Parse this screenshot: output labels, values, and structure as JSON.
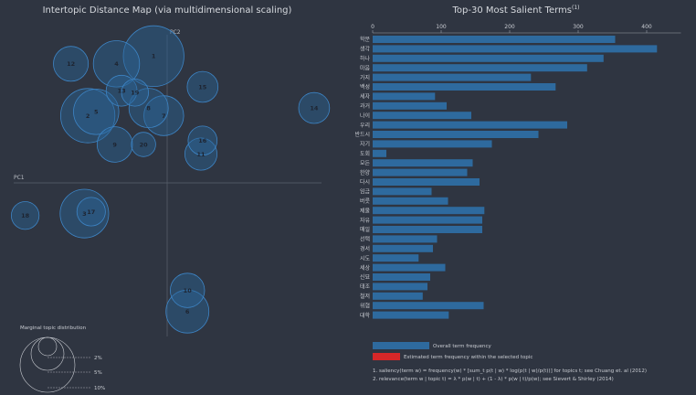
{
  "left_panel": {
    "title": "Intertopic Distance Map (via multidimensional scaling)",
    "pc1_label": "PC1",
    "pc2_label": "PC2",
    "marginal_title": "Marginal topic distribution",
    "marginal_levels": [
      "2%",
      "5%",
      "10%"
    ]
  },
  "right_panel": {
    "title": "Top-30 Most Salient Terms",
    "title_sup": "(1)",
    "legend_overall": "Overall term frequency",
    "legend_selected": "Estimated term frequency within the selected topic",
    "footnote1": "1. saliency(term w) = frequency(w) * [sum_t p(t | w) * log(p(t | w)/p(t))] for topics t; see Chuang et. al (2012)",
    "footnote2": "2. relevance(term w | topic t) = λ * p(w | t) + (1 - λ) * p(w | t)/p(w); see Sievert & Shirley (2014)"
  },
  "colors": {
    "background": "#2f3541",
    "bubble_fill": "#2a6496",
    "bubble_stroke": "#3d85c6",
    "bar": "#2e6a9e",
    "selected_bar": "#d62728"
  },
  "chart_data": [
    {
      "type": "scatter",
      "title": "Intertopic Distance Map (via multidimensional scaling)",
      "xlabel": "PC1",
      "ylabel": "PC2",
      "xlim": [
        -1,
        1
      ],
      "ylim": [
        -1,
        1
      ],
      "points": [
        {
          "topic": "1",
          "x": -0.08,
          "y": 0.66,
          "size": 10.0
        },
        {
          "topic": "2",
          "x": -0.47,
          "y": 0.35,
          "size": 8.0
        },
        {
          "topic": "3",
          "x": -0.49,
          "y": -0.16,
          "size": 6.4
        },
        {
          "topic": "4",
          "x": -0.3,
          "y": 0.62,
          "size": 5.8
        },
        {
          "topic": "5",
          "x": -0.42,
          "y": 0.37,
          "size": 5.6
        },
        {
          "topic": "6",
          "x": 0.12,
          "y": -0.67,
          "size": 5.0
        },
        {
          "topic": "7",
          "x": -0.02,
          "y": 0.35,
          "size": 4.3
        },
        {
          "topic": "8",
          "x": -0.11,
          "y": 0.39,
          "size": 4.2
        },
        {
          "topic": "9",
          "x": -0.31,
          "y": 0.2,
          "size": 3.4
        },
        {
          "topic": "10",
          "x": 0.12,
          "y": -0.56,
          "size": 3.2
        },
        {
          "topic": "11",
          "x": 0.2,
          "y": 0.15,
          "size": 2.8
        },
        {
          "topic": "12",
          "x": -0.57,
          "y": 0.62,
          "size": 3.3
        },
        {
          "topic": "13",
          "x": -0.27,
          "y": 0.48,
          "size": 2.6
        },
        {
          "topic": "14",
          "x": 0.87,
          "y": 0.39,
          "size": 2.6
        },
        {
          "topic": "15",
          "x": 0.21,
          "y": 0.5,
          "size": 2.6
        },
        {
          "topic": "16",
          "x": 0.21,
          "y": 0.22,
          "size": 2.3
        },
        {
          "topic": "17",
          "x": -0.45,
          "y": -0.15,
          "size": 2.2
        },
        {
          "topic": "18",
          "x": -0.84,
          "y": -0.17,
          "size": 2.1
        },
        {
          "topic": "19",
          "x": -0.19,
          "y": 0.47,
          "size": 2.0
        },
        {
          "topic": "20",
          "x": -0.14,
          "y": 0.2,
          "size": 1.6
        }
      ]
    },
    {
      "type": "bar",
      "orientation": "horizontal",
      "title": "Top-30 Most Salient Terms",
      "xlim": [
        0,
        450
      ],
      "xticks": [
        0,
        100,
        200,
        300,
        400
      ],
      "series": [
        {
          "name": "Overall term frequency",
          "categories": [
            "학문",
            "생각",
            "하나",
            "마음",
            "가지",
            "백성",
            "세자",
            "과거",
            "나이",
            "우리",
            "반드시",
            "자기",
            "도회",
            "모든",
            "한양",
            "다시",
            "임금",
            "버릇",
            "제물",
            "자유",
            "매일",
            "선택",
            "경서",
            "시도",
            "세상",
            "신묘",
            "태조",
            "철저",
            "위협",
            "대학"
          ],
          "values": [
            354,
            415,
            337,
            313,
            231,
            267,
            91,
            108,
            144,
            284,
            242,
            174,
            20,
            146,
            138,
            156,
            86,
            110,
            163,
            160,
            160,
            94,
            88,
            67,
            106,
            84,
            80,
            73,
            162,
            111
          ]
        }
      ]
    }
  ]
}
